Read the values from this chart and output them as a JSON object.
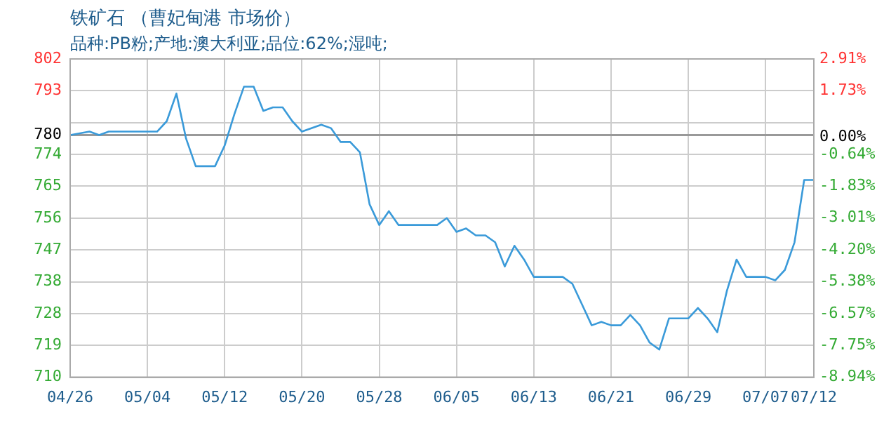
{
  "chart_data": {
    "type": "line",
    "title": "铁矿石 （曹妃甸港 市场价）",
    "subtitle": "品种:PB粉;产地:澳大利亚;品位:62%;湿吨;",
    "x": [
      "--04-26",
      "--04-28",
      "--04-29",
      "--04-30",
      "--05-05",
      "--05-06",
      "--05-07",
      "--05-08",
      "--05-09",
      "--05-11",
      "--05-12",
      "--05-13",
      "--05-14",
      "--05-15",
      "--05-16",
      "--05-17",
      "--05-18",
      "--05-19",
      "--05-20",
      "--05-22",
      "--05-23",
      "--05-24",
      "--05-25",
      "--05-26",
      "--05-27",
      "--05-28",
      "--05-29",
      "--05-30",
      "--06-03",
      "--06-04",
      "--06-05",
      "--06-06",
      "--06-07",
      "--06-08",
      "--06-09",
      "--06-10",
      "--06-11",
      "--06-12",
      "--06-13",
      "--06-16",
      "--06-17",
      "--06-18",
      "--06-19",
      "--06-20",
      "--06-21",
      "--06-22",
      "--06-23",
      "--06-24",
      "--06-25",
      "--06-26",
      "--06-27",
      "--06-29",
      "--06-30",
      "--07-01",
      "--07-02",
      "--07-03",
      "--07-04",
      "--07-05",
      "--07-07",
      "--07-08",
      "--07-09",
      "--07-10",
      "--07-11",
      "--07-12"
    ],
    "series": [
      {
        "color": "#3a9ad9",
        "values": [
          780,
          781,
          780,
          781,
          781,
          784,
          792,
          779,
          771,
          771,
          777,
          786,
          794,
          794,
          787,
          788,
          788,
          784,
          781,
          783,
          782,
          778,
          778,
          775,
          760,
          754,
          758,
          754,
          754,
          756,
          752,
          753,
          751,
          751,
          749,
          742,
          748,
          744,
          739,
          739,
          737,
          731,
          725,
          726,
          725,
          725,
          728,
          725,
          720,
          718,
          727,
          727,
          730,
          727,
          723,
          735,
          744,
          739,
          739,
          738,
          741,
          749,
          767,
          767
        ]
      }
    ],
    "xlim": [
      "--04-26",
      "--07-12"
    ],
    "xticks": [
      {
        "value": "--04-26",
        "label": "04/26"
      },
      {
        "value": "--05-04",
        "label": "05/04"
      },
      {
        "value": "--05-12",
        "label": "05/12"
      },
      {
        "value": "--05-20",
        "label": "05/20"
      },
      {
        "value": "--05-28",
        "label": "05/28"
      },
      {
        "value": "--06-05",
        "label": "06/05"
      },
      {
        "value": "--06-13",
        "label": "06/13"
      },
      {
        "value": "--06-21",
        "label": "06/21"
      },
      {
        "value": "--06-29",
        "label": "06/29"
      },
      {
        "value": "--07-07",
        "label": "07/07"
      },
      {
        "value": "--07-12",
        "label": "07/12"
      }
    ],
    "ylim": [
      710,
      802
    ],
    "yticks": [
      710,
      {
        "value": 719.2,
        "label": "719"
      },
      {
        "value": 728.4,
        "label": "728"
      },
      {
        "value": 737.6,
        "label": "738"
      },
      {
        "value": 746.8,
        "label": "747"
      },
      756,
      {
        "value": 765.2,
        "label": "765"
      },
      {
        "value": 774.4,
        "label": "774"
      },
      780,
      {
        "value": 783.6,
        "label": null
      },
      {
        "value": 792.8,
        "label": "793"
      },
      802
    ],
    "y2lim": [
      -8.94,
      2.91
    ],
    "y2ticks": [
      {
        "value": -8.94,
        "label": "-8.94%"
      },
      {
        "value": -7.75,
        "label": "-7.75%"
      },
      {
        "value": -6.57,
        "label": "-6.57%"
      },
      {
        "value": -5.38,
        "label": "-5.38%"
      },
      {
        "value": -4.2,
        "label": "-4.20%"
      },
      {
        "value": -3.01,
        "label": "-3.01%"
      },
      {
        "value": -1.83,
        "label": "-1.83%"
      },
      {
        "value": -0.64,
        "label": "-0.64%"
      },
      {
        "value": 0,
        "label": "0.00%"
      },
      {
        "value": 1.73,
        "label": "1.73%"
      },
      {
        "value": 2.91,
        "label": "2.91%"
      }
    ],
    "ref_lines": [
      {
        "axis": "y",
        "value": 780,
        "color": "#999999",
        "line_style": "solid"
      }
    ],
    "grid": true,
    "legend": false,
    "marker": "none",
    "line_style": "solid"
  }
}
